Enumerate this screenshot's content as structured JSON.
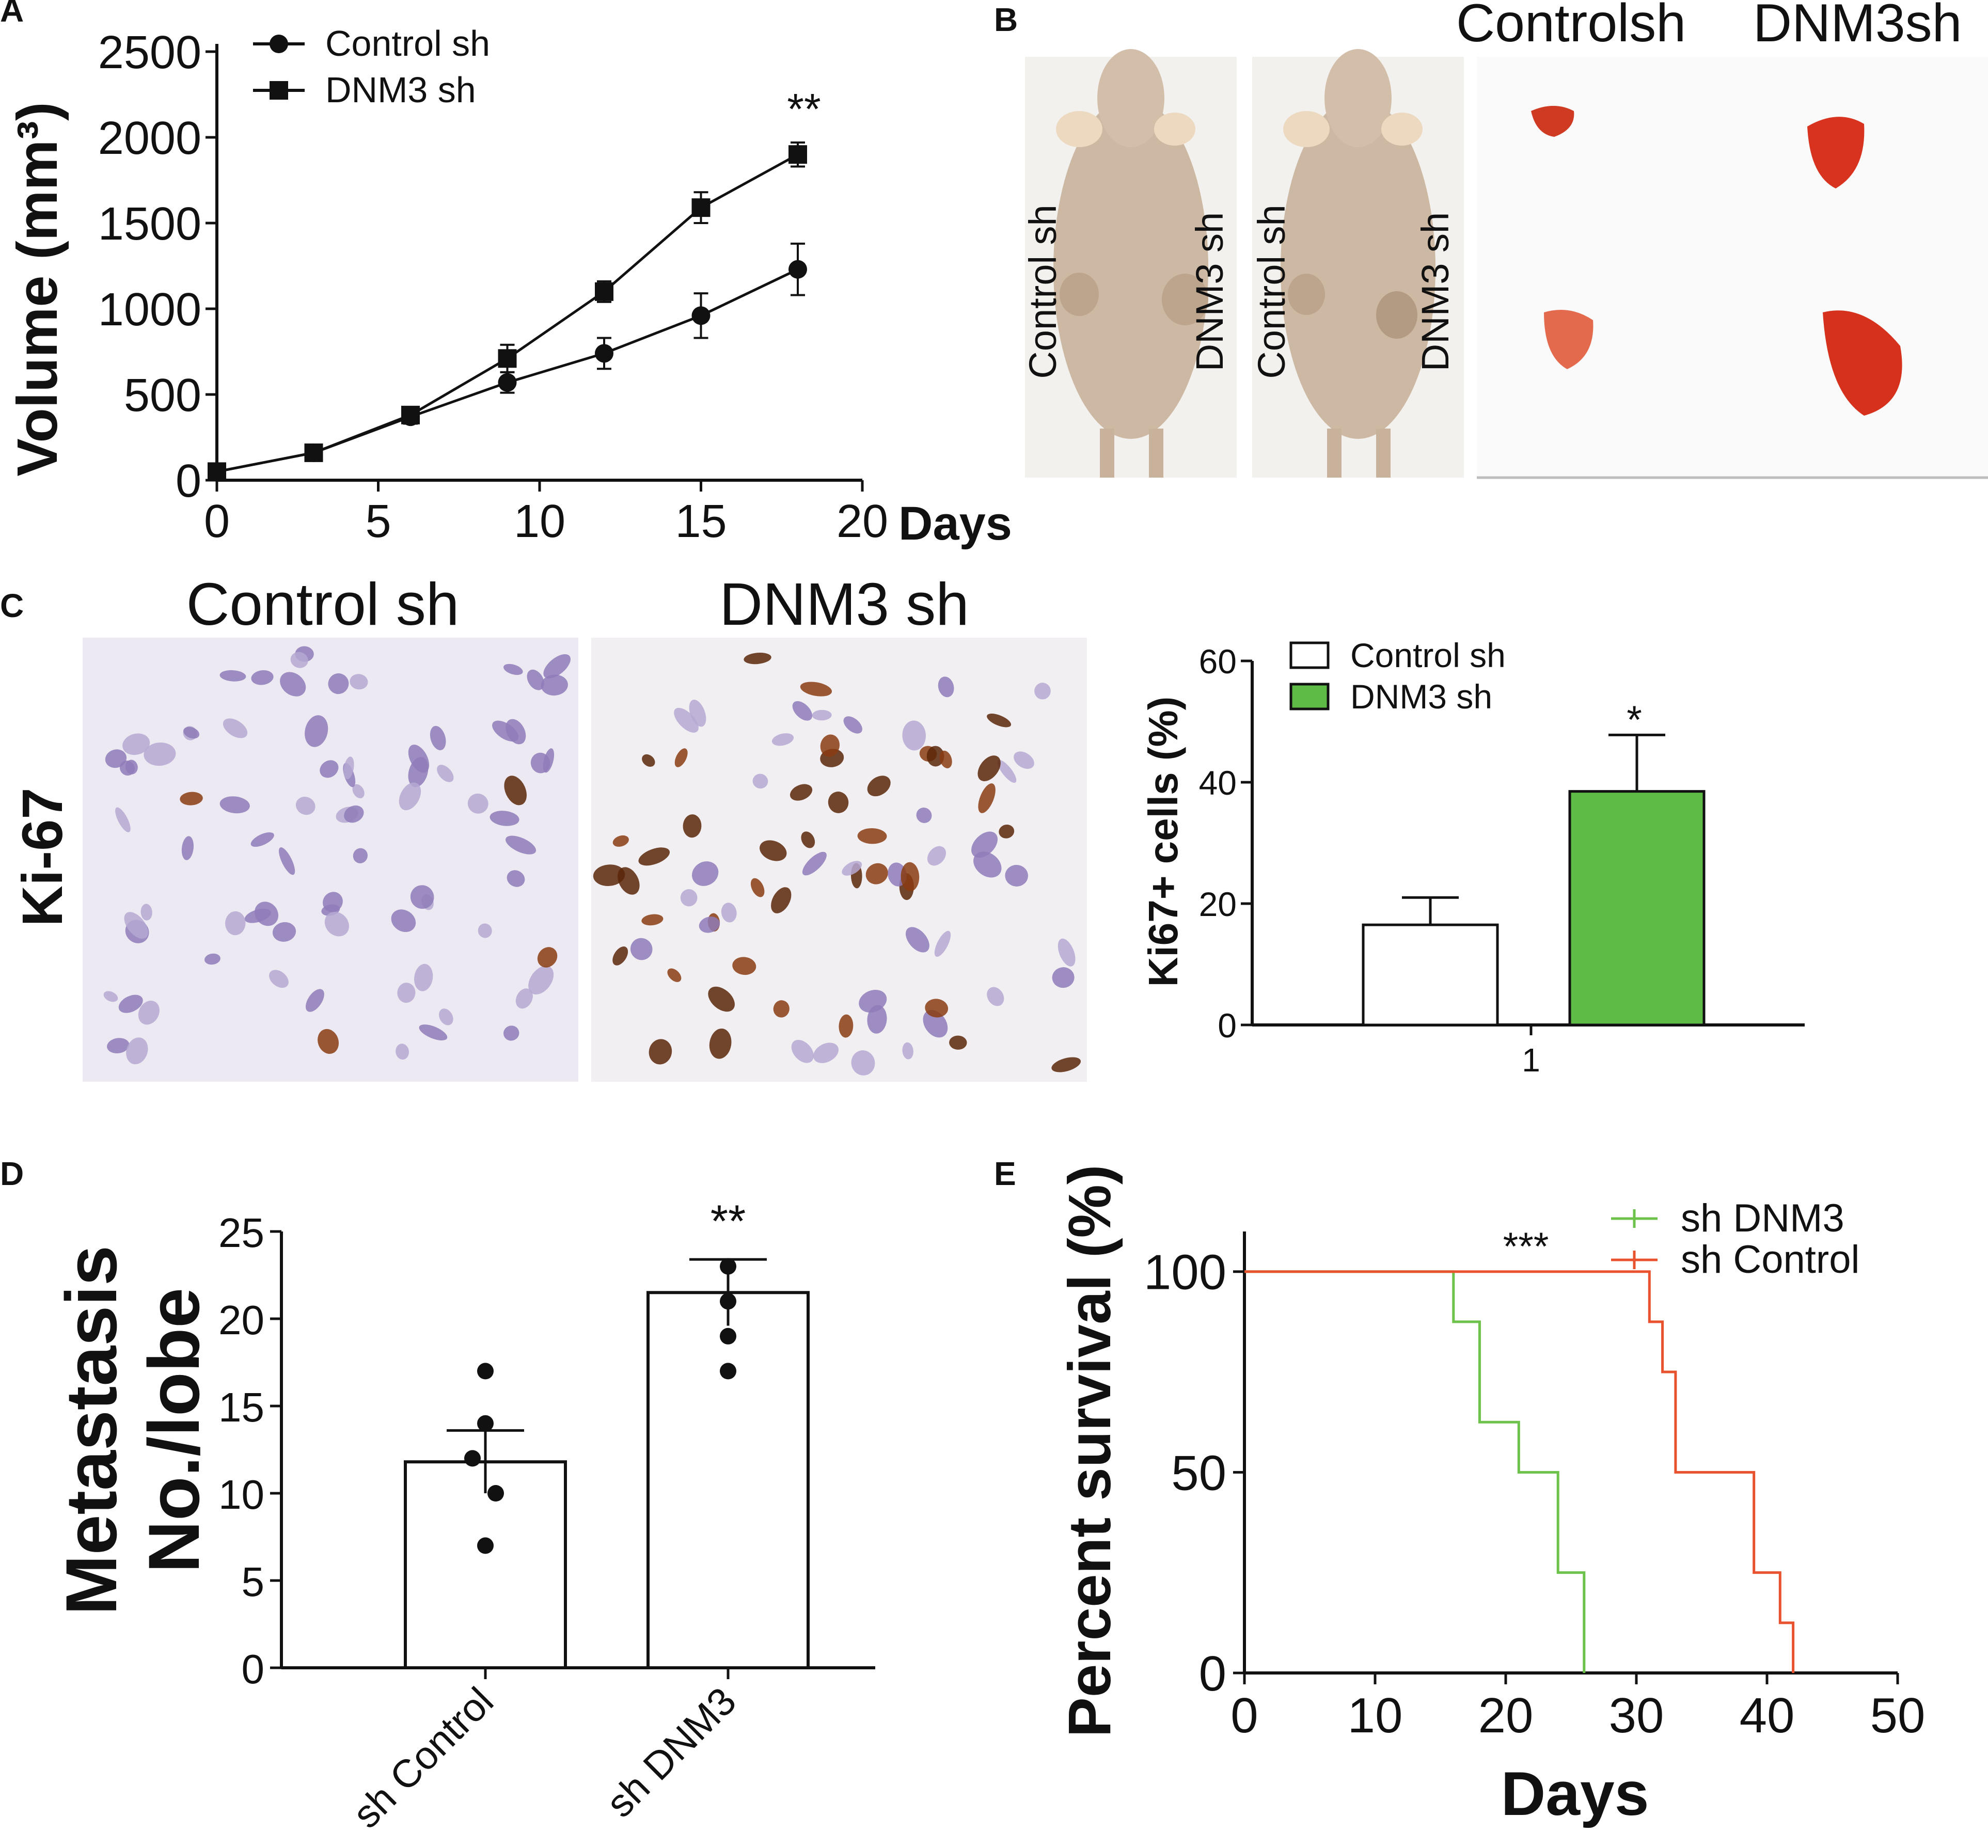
{
  "panels": {
    "A": "A",
    "B": "B",
    "C": "C",
    "D": "D",
    "E": "E"
  },
  "chart_data": [
    {
      "id": "A",
      "type": "line",
      "title": "",
      "xlabel": "Days",
      "ylabel": "Volume (mm³)",
      "xlim": [
        0,
        20
      ],
      "ylim": [
        0,
        2500
      ],
      "xticks": [
        0,
        5,
        10,
        15,
        20
      ],
      "yticks": [
        0,
        500,
        1000,
        1500,
        2000,
        2500
      ],
      "legend": "top-left",
      "series": [
        {
          "name": "Control sh",
          "marker": "circle",
          "x": [
            0,
            3,
            6,
            9,
            12,
            15,
            18
          ],
          "y": [
            50,
            160,
            370,
            570,
            740,
            960,
            1230
          ],
          "err": [
            20,
            25,
            40,
            60,
            90,
            130,
            150
          ]
        },
        {
          "name": "DNM3 sh",
          "marker": "square",
          "x": [
            0,
            3,
            6,
            9,
            12,
            15,
            18
          ],
          "y": [
            50,
            160,
            380,
            710,
            1100,
            1590,
            1900
          ],
          "err": [
            20,
            25,
            40,
            80,
            60,
            90,
            70
          ]
        }
      ],
      "annotation": "**"
    },
    {
      "id": "C",
      "type": "bar",
      "title": "",
      "xlabel": "",
      "ylabel": "Ki67+ cells (%)",
      "ylim": [
        0,
        60
      ],
      "yticks": [
        0,
        20,
        40,
        60
      ],
      "categories": [
        "1"
      ],
      "legend": "top-left",
      "series": [
        {
          "name": "Control sh",
          "color": "#ffffff",
          "values": [
            16.5
          ],
          "err": [
            4.5
          ]
        },
        {
          "name": "DNM3 sh",
          "color": "#5dbb46",
          "values": [
            38.5
          ],
          "err": [
            9.3
          ]
        }
      ],
      "annotation": "*"
    },
    {
      "id": "D",
      "type": "bar",
      "title": "",
      "xlabel": "",
      "ylabel_line1": "Metastasis",
      "ylabel_line2": "No./lobe",
      "ylim": [
        0,
        25
      ],
      "yticks": [
        0,
        5,
        10,
        15,
        20,
        25
      ],
      "categories": [
        "sh Control",
        "sh DNM3"
      ],
      "values": [
        11.8,
        21.5
      ],
      "err": [
        1.8,
        1.9
      ],
      "points": [
        [
          17,
          14,
          12,
          10,
          7
        ],
        [
          23,
          21,
          19,
          17
        ]
      ],
      "annotation": "**"
    },
    {
      "id": "E",
      "type": "line",
      "title": "",
      "xlabel": "Days",
      "ylabel": "Percent survival (%)",
      "xlim": [
        0,
        50
      ],
      "ylim": [
        0,
        110
      ],
      "xticks": [
        0,
        10,
        20,
        30,
        40,
        50
      ],
      "yticks": [
        0,
        50,
        100
      ],
      "legend": "top-right",
      "series": [
        {
          "name": "sh DNM3",
          "color": "#6cc24a",
          "x": [
            0,
            16,
            16,
            18,
            18,
            21,
            21,
            24,
            24,
            26,
            26
          ],
          "y": [
            100,
            100,
            87.5,
            87.5,
            62.5,
            62.5,
            50,
            50,
            25,
            25,
            0
          ]
        },
        {
          "name": "sh Control",
          "color": "#e8522e",
          "x": [
            0,
            31,
            31,
            32,
            32,
            33,
            33,
            39,
            39,
            41,
            41,
            42,
            42
          ],
          "y": [
            100,
            100,
            87.5,
            87.5,
            75,
            75,
            50,
            50,
            25,
            25,
            12.5,
            12.5,
            0
          ]
        }
      ],
      "annotation": "***"
    }
  ],
  "panelB": {
    "photo_labels": [
      "Control sh",
      "DNM3 sh",
      "Control sh",
      "DNM3 sh"
    ],
    "tumor_header_left": "Controlsh",
    "tumor_header_right": "DNM3sh"
  },
  "panelC": {
    "row_label": "Ki-67",
    "header_left": "Control sh",
    "header_right": "DNM3 sh"
  }
}
